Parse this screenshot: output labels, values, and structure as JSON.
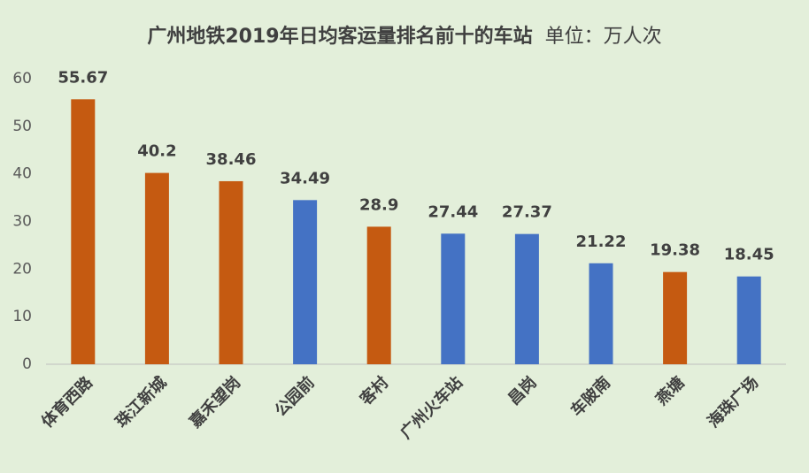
{
  "chart_data": {
    "type": "bar",
    "title": "广州地铁2019年日均客运量排名前十的车站",
    "subtitle": "单位：万人次",
    "categories": [
      "体育西路",
      "珠江新城",
      "嘉禾望岗",
      "公园前",
      "客村",
      "广州火车站",
      "昌岗",
      "车陂南",
      "燕塘",
      "海珠广场"
    ],
    "values": [
      55.67,
      40.2,
      38.46,
      34.49,
      28.9,
      27.44,
      27.37,
      21.22,
      19.38,
      18.45
    ],
    "colors": [
      "#c55a11",
      "#c55a11",
      "#c55a11",
      "#4472c4",
      "#c55a11",
      "#4472c4",
      "#4472c4",
      "#4472c4",
      "#c55a11",
      "#4472c4"
    ],
    "ylim": [
      0,
      60
    ],
    "yticks": [
      0,
      10,
      20,
      30,
      40,
      50,
      60
    ],
    "grid": false
  }
}
